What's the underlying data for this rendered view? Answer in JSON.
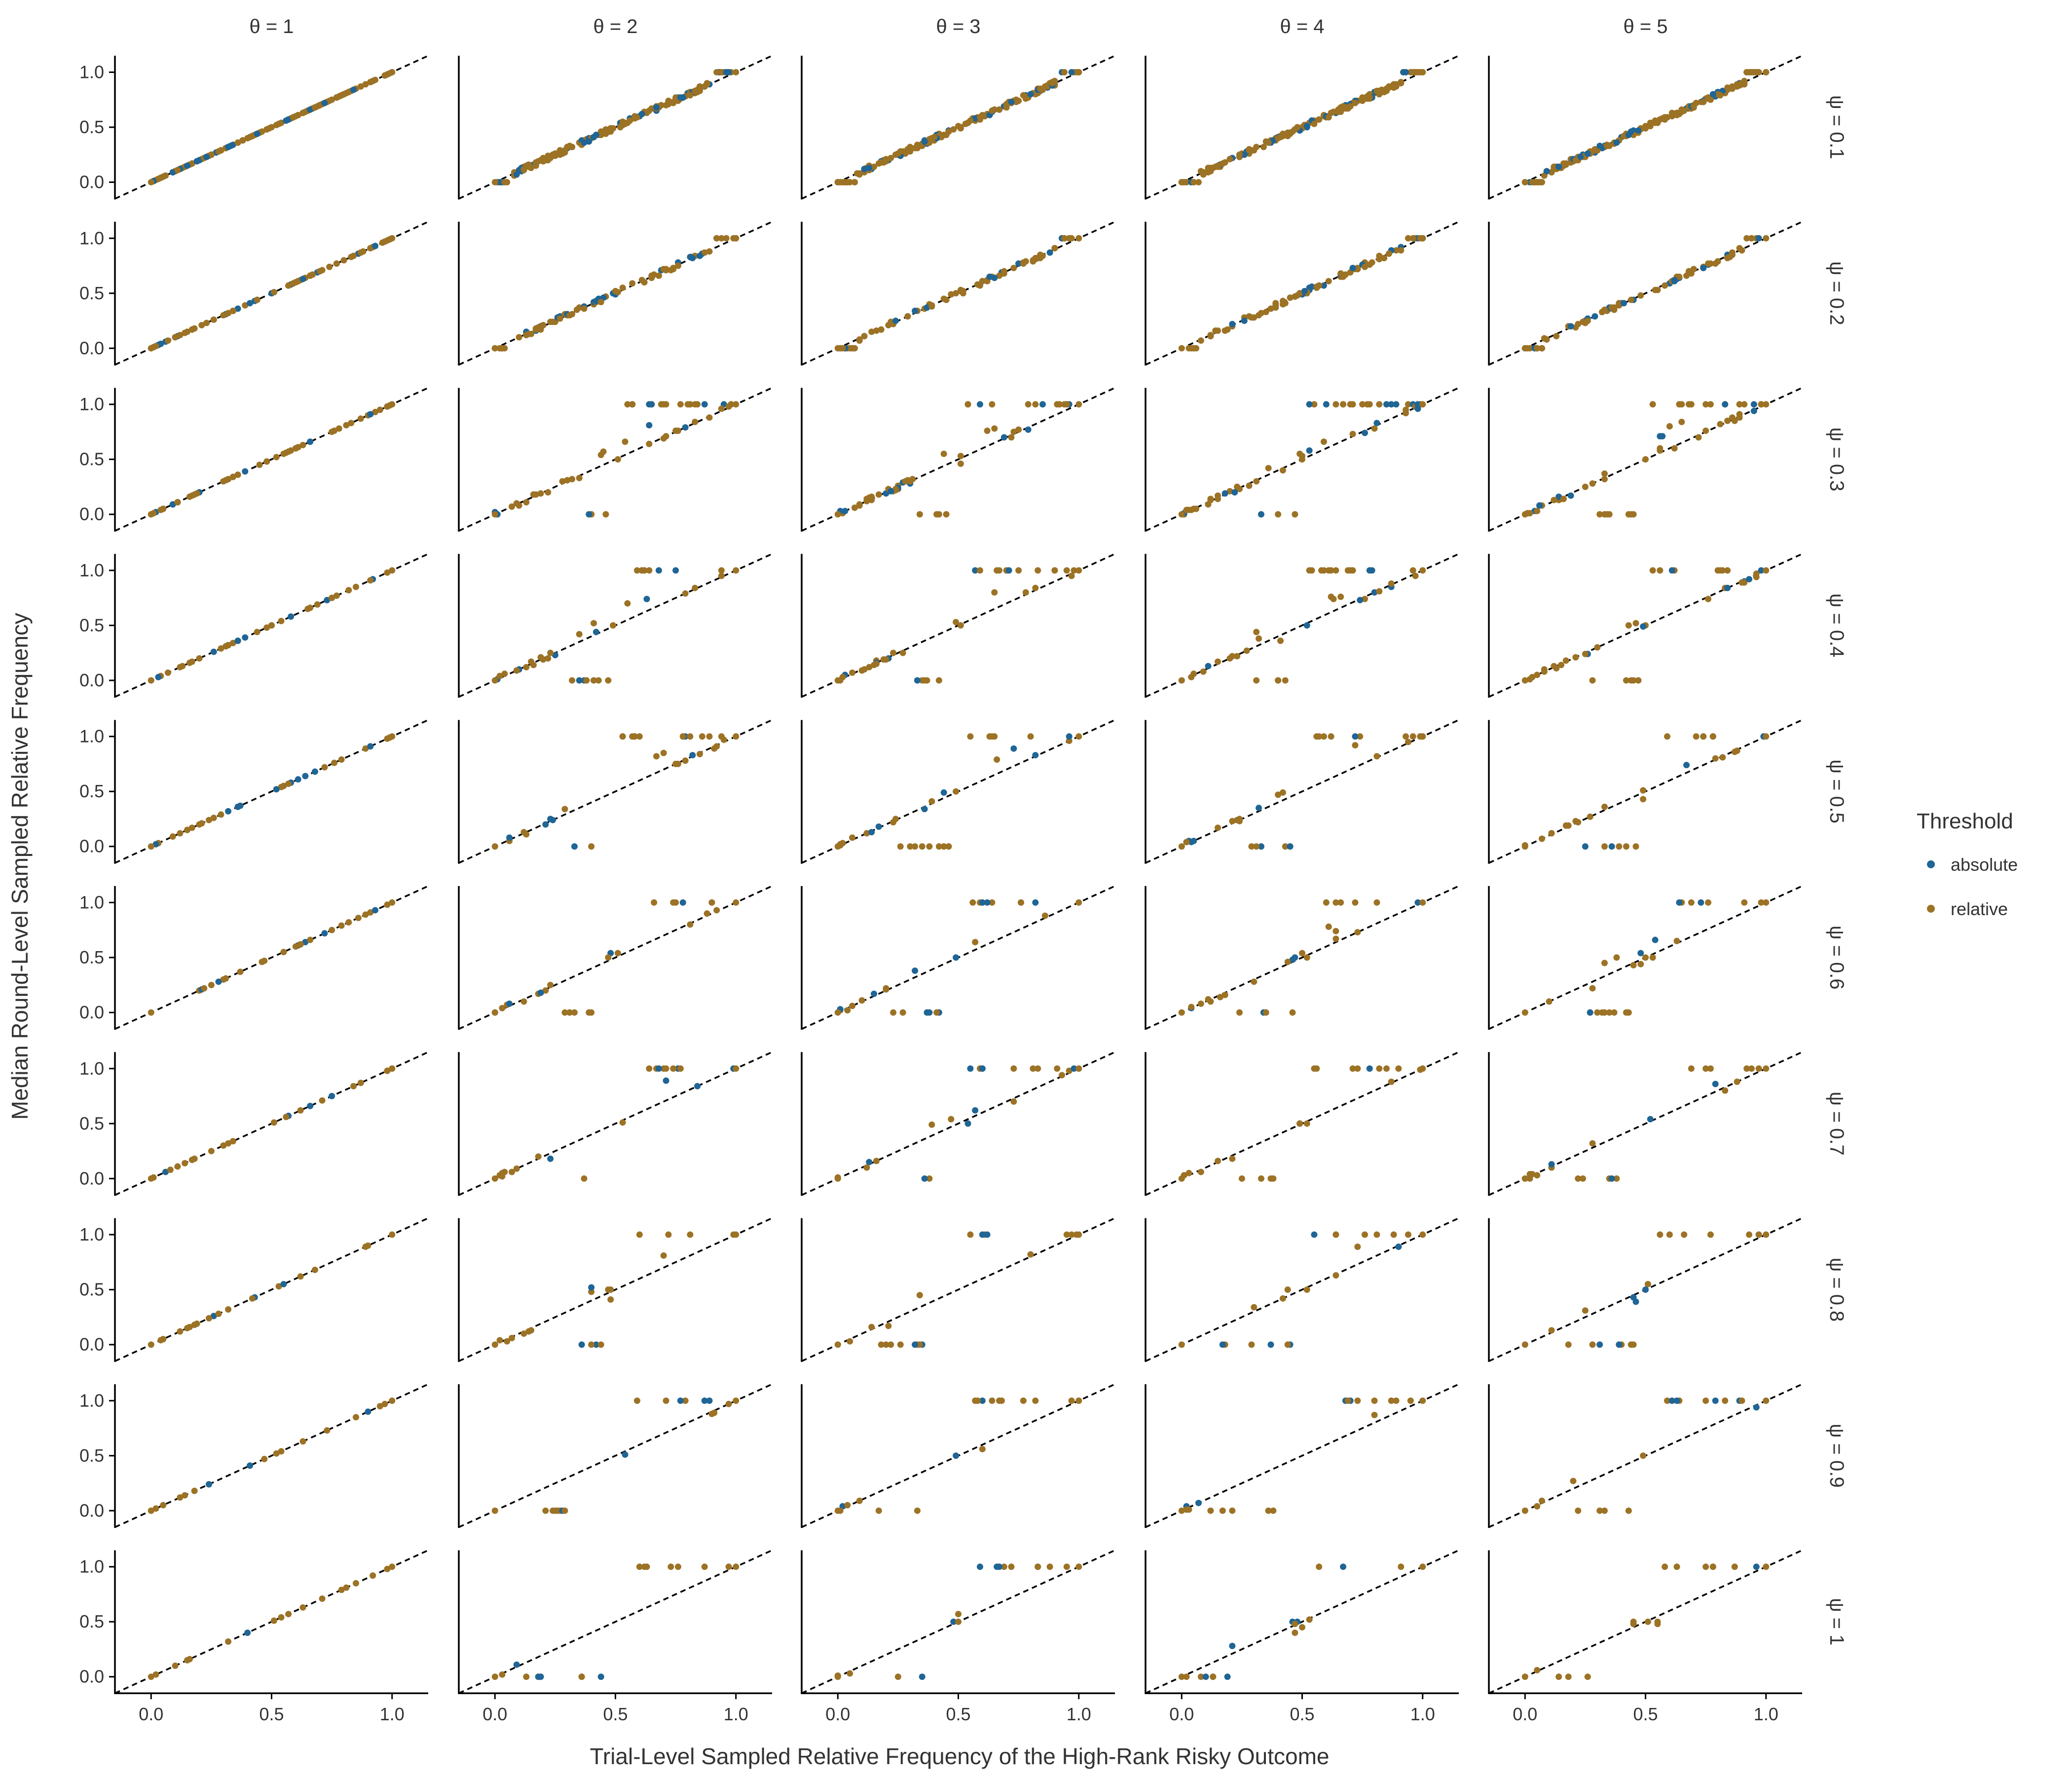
{
  "chart_data": {
    "type": "scatter",
    "layout": "facet-grid",
    "xlabel": "Trial-Level Sampled Relative Frequency of the High-Rank Risky Outcome",
    "ylabel": "Median Round-Level Sampled Relative Frequency",
    "col_labels": [
      "θ = 1",
      "θ = 2",
      "θ = 3",
      "θ = 4",
      "θ = 5"
    ],
    "row_labels": [
      "ψ = 0.1",
      "ψ = 0.2",
      "ψ = 0.3",
      "ψ = 0.4",
      "ψ = 0.5",
      "ψ = 0.6",
      "ψ = 0.7",
      "ψ = 0.8",
      "ψ = 0.9",
      "ψ = 1"
    ],
    "theta": [
      1,
      2,
      3,
      4,
      5
    ],
    "psi": [
      0.1,
      0.2,
      0.3,
      0.4,
      0.5,
      0.6,
      0.7,
      0.8,
      0.9,
      1
    ],
    "xlim": [
      -0.15,
      1.15
    ],
    "ylim": [
      -0.15,
      1.15
    ],
    "x_ticks": [
      "0.0",
      "0.5",
      "1.0"
    ],
    "y_ticks": [
      "0.0",
      "0.5",
      "1.0"
    ],
    "reference_line": "identity (y = x), dashed black",
    "grid": false,
    "legend": {
      "title": "Threshold",
      "placement": "right",
      "items": [
        {
          "name": "absolute",
          "color": "#1f6596"
        },
        {
          "name": "relative",
          "color": "#9c7225"
        }
      ]
    }
  }
}
